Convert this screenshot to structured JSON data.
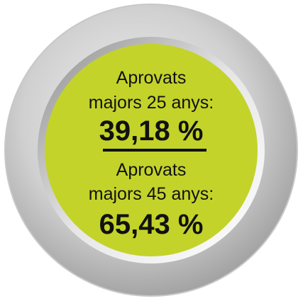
{
  "items": [
    {
      "label_lines": [
        "Aprovats",
        "majors 25 anys:"
      ],
      "value": "39,18 %"
    },
    {
      "label_lines": [
        "Aprovats",
        "majors 45 anys:"
      ],
      "value": "65,43 %"
    }
  ]
}
